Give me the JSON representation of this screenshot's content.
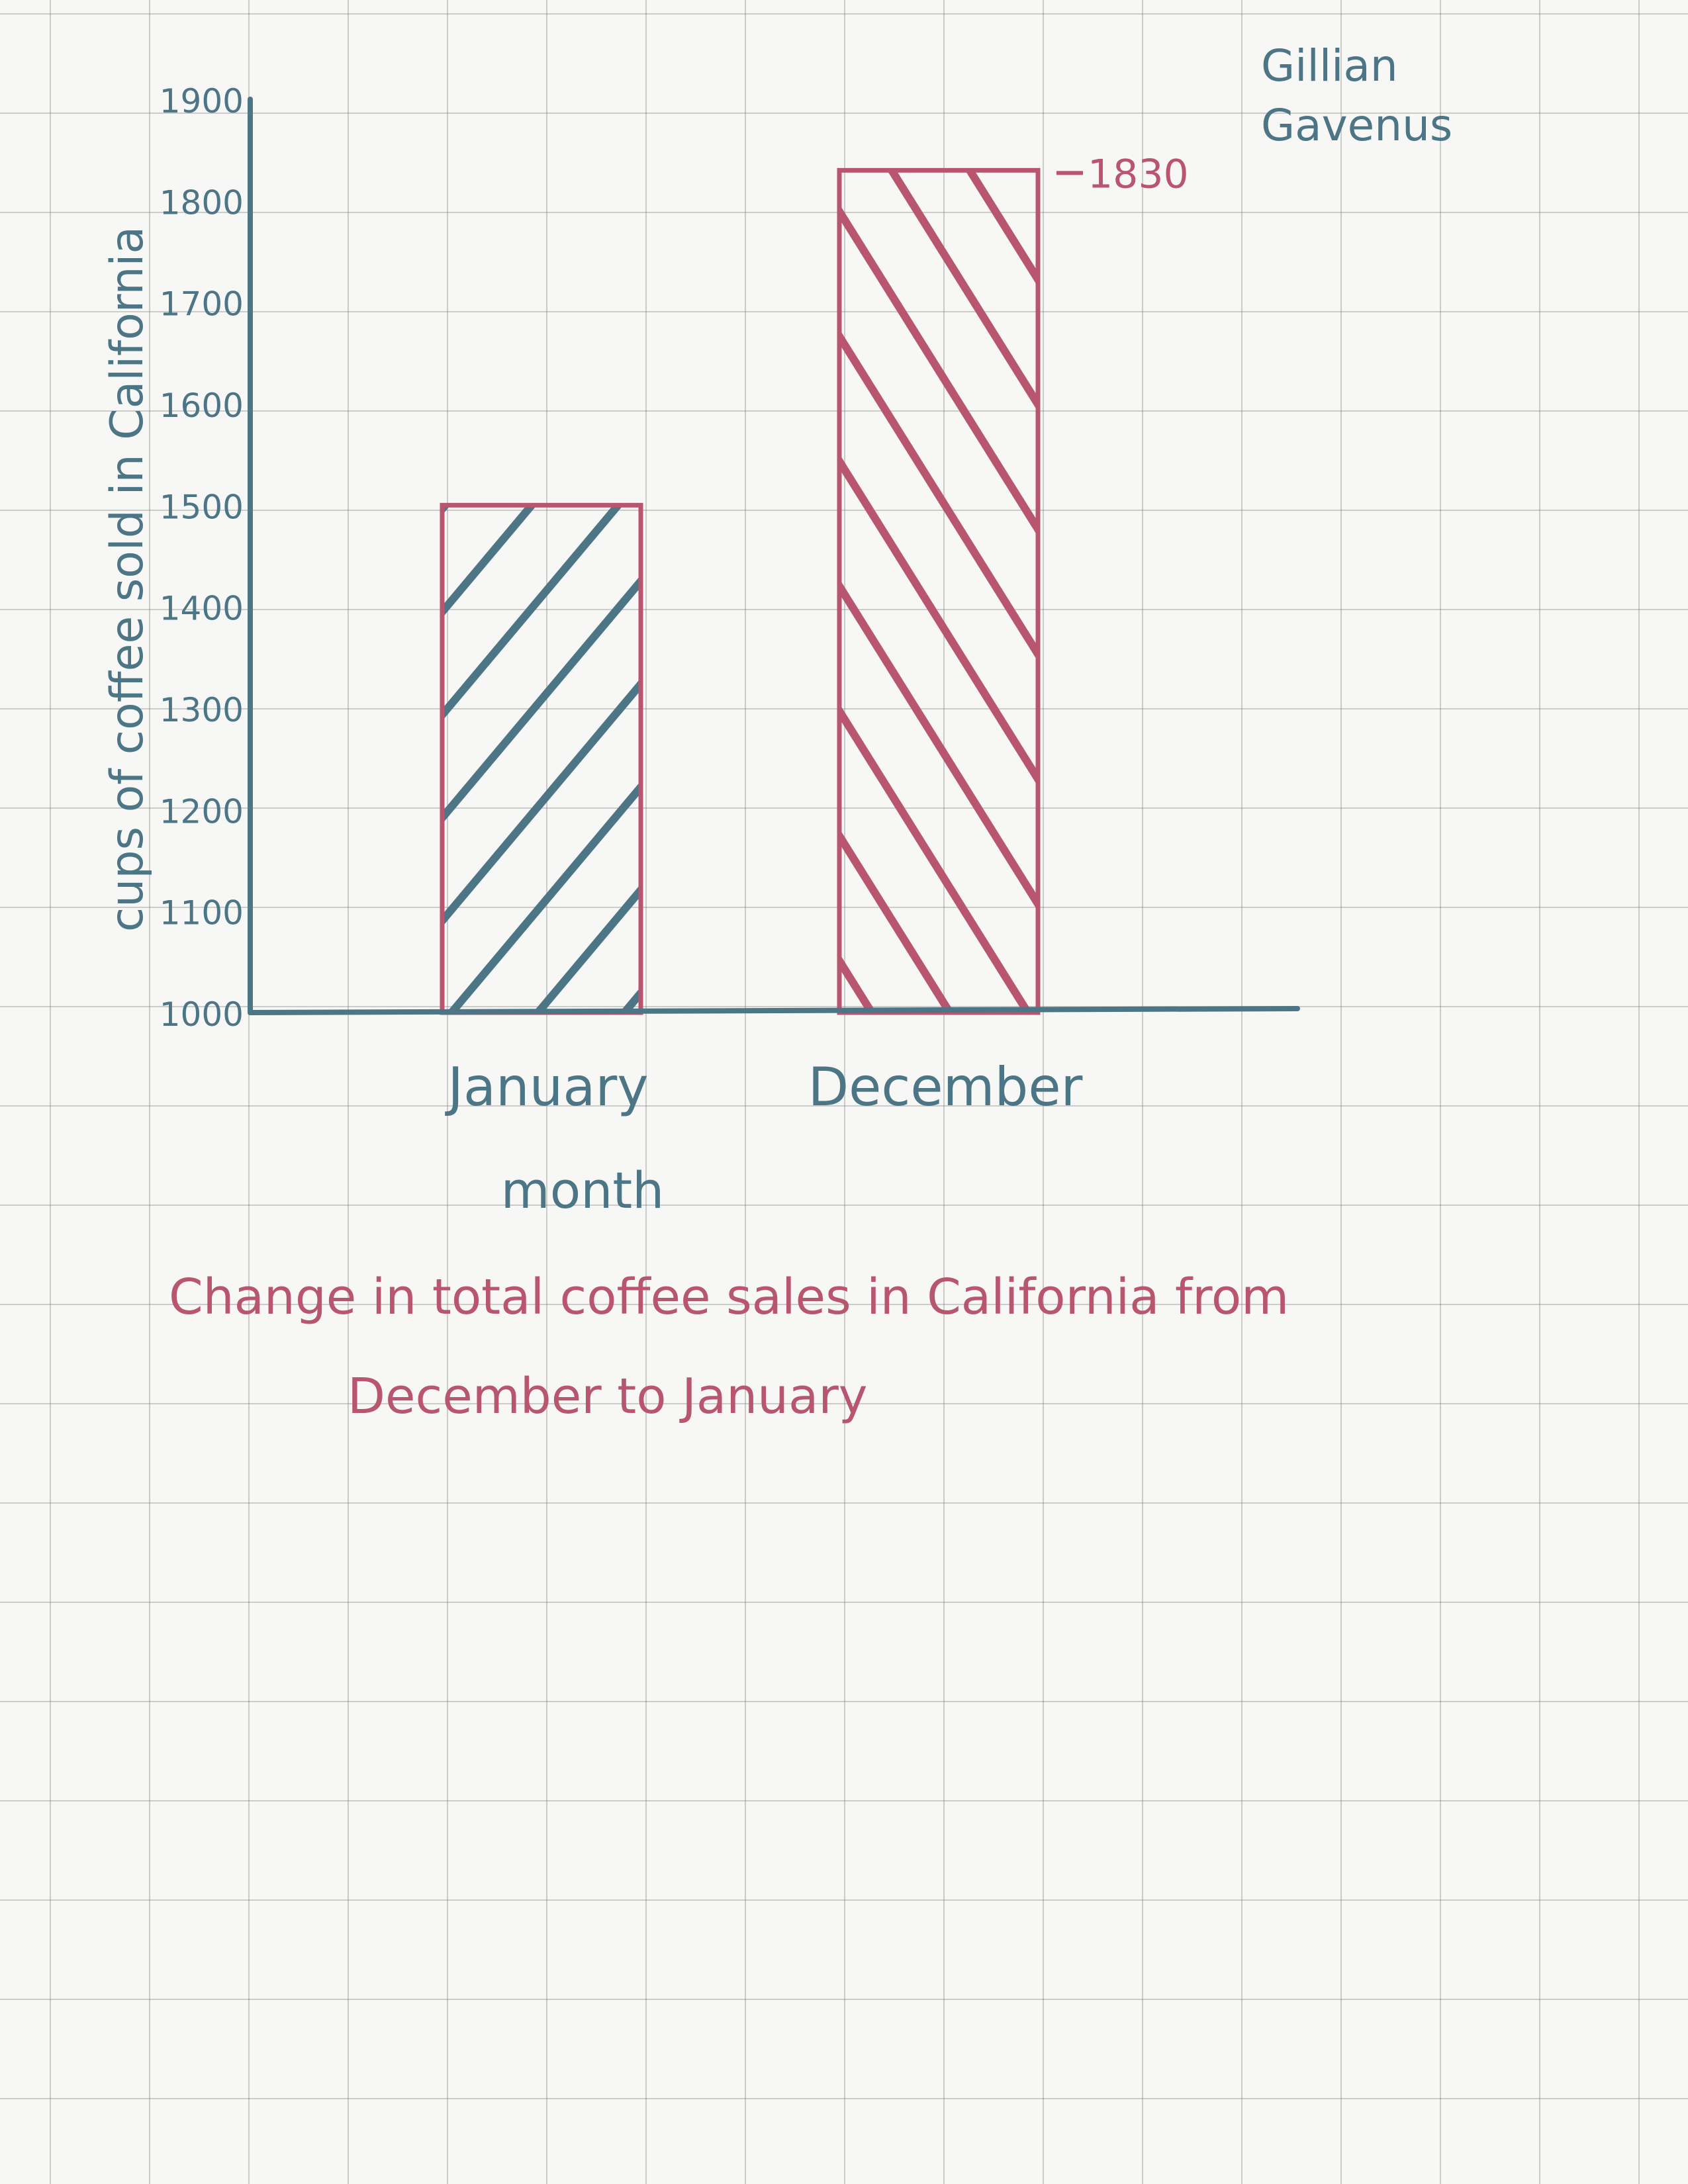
{
  "author": {
    "first": "Gillian",
    "last": "Gavenus"
  },
  "chart_data": {
    "type": "bar",
    "title_line1": "Change in total coffee sales in California from",
    "title_line2": "December to January",
    "xlabel": "month",
    "ylabel": "cups of coffee sold in California",
    "categories": [
      "January",
      "December"
    ],
    "values": [
      1500,
      1830
    ],
    "data_labels": [
      "",
      "1830"
    ],
    "ylim": [
      1000,
      1900
    ],
    "yticks": [
      1000,
      1100,
      1200,
      1300,
      1400,
      1500,
      1600,
      1700,
      1800,
      1900
    ],
    "ytick_labels": [
      "1000",
      "1100",
      "1200",
      "1300",
      "1400",
      "1500",
      "1600",
      "1700",
      "1800",
      "1900"
    ],
    "grid": true,
    "colors": {
      "axis": "#4c7585",
      "bar_outline": "#b8566f",
      "hatch": [
        "#4c7585",
        "#b8566f"
      ],
      "title": "#b8566f"
    }
  }
}
